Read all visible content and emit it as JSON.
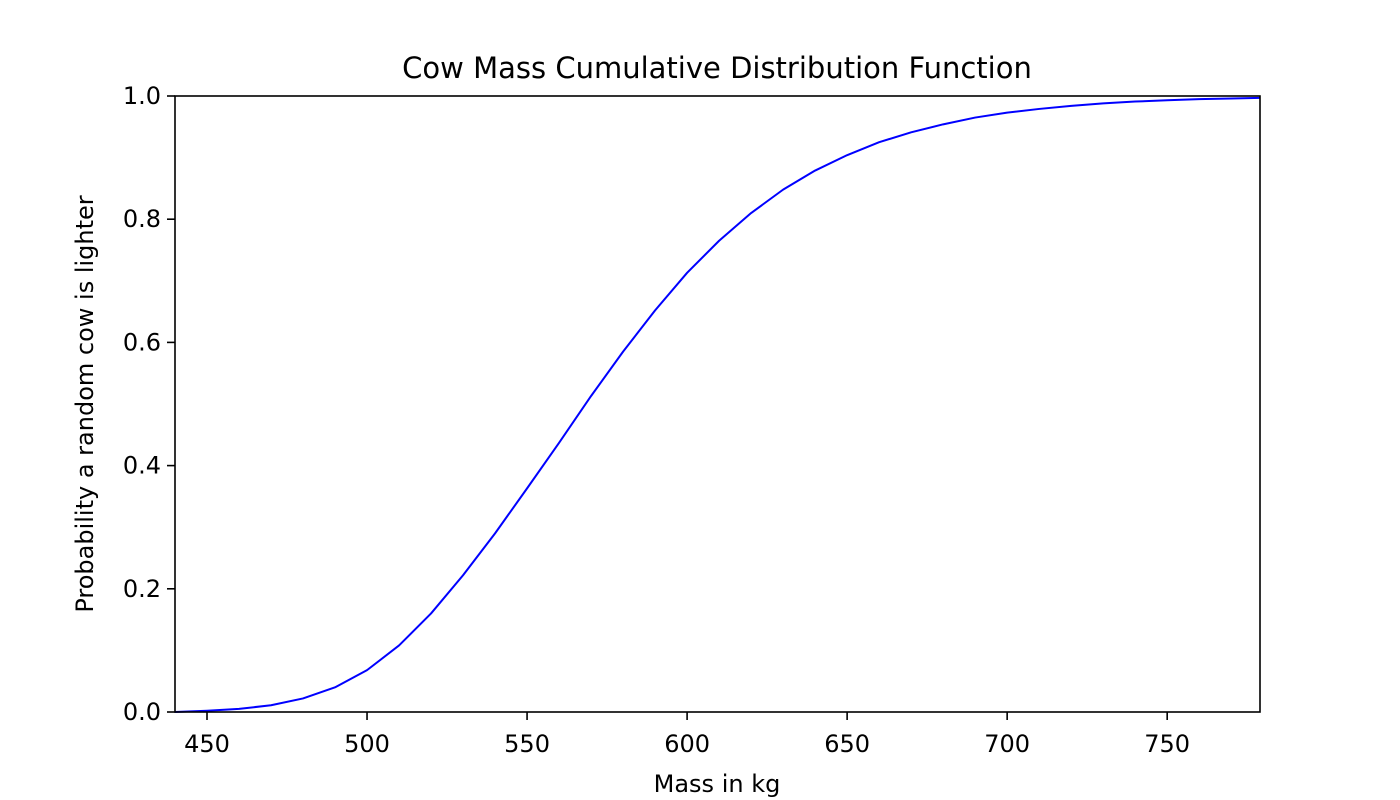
{
  "chart_data": {
    "type": "line",
    "title": "Cow Mass Cumulative Distribution Function",
    "xlabel": "Mass in kg",
    "ylabel": "Probability a random cow is lighter",
    "xlim": [
      440,
      779
    ],
    "ylim": [
      0.0,
      1.0
    ],
    "x_ticks": [
      450,
      500,
      550,
      600,
      650,
      700,
      750
    ],
    "x_tick_labels": [
      "450",
      "500",
      "550",
      "600",
      "650",
      "700",
      "750"
    ],
    "y_ticks": [
      0.0,
      0.2,
      0.4,
      0.6,
      0.8,
      1.0
    ],
    "y_tick_labels": [
      "0.0",
      "0.2",
      "0.4",
      "0.6",
      "0.8",
      "1.0"
    ],
    "grid": false,
    "series": [
      {
        "color": "#0000ff",
        "x": [
          440,
          450,
          460,
          470,
          480,
          490,
          500,
          510,
          520,
          530,
          540,
          550,
          560,
          570,
          580,
          590,
          600,
          610,
          620,
          630,
          640,
          650,
          660,
          670,
          680,
          690,
          700,
          710,
          720,
          730,
          740,
          750,
          760,
          770,
          779
        ],
        "y": [
          0.0,
          0.002,
          0.005,
          0.011,
          0.022,
          0.04,
          0.068,
          0.108,
          0.16,
          0.222,
          0.29,
          0.363,
          0.437,
          0.513,
          0.585,
          0.652,
          0.713,
          0.765,
          0.81,
          0.848,
          0.879,
          0.904,
          0.925,
          0.941,
          0.954,
          0.965,
          0.973,
          0.979,
          0.984,
          0.988,
          0.991,
          0.993,
          0.995,
          0.996,
          0.997
        ]
      }
    ]
  }
}
